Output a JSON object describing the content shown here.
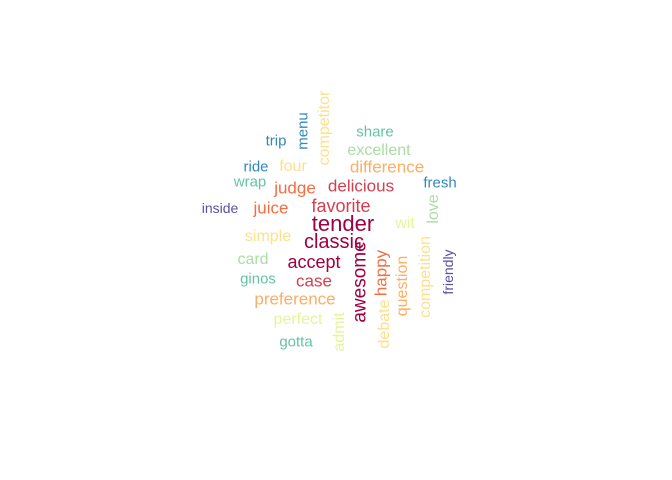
{
  "words": [
    {
      "text": "tender",
      "color": "#9e0142",
      "vertical": false
    },
    {
      "text": "classic",
      "color": "#9e0142",
      "vertical": false
    },
    {
      "text": "favorite",
      "color": "#d53e4f",
      "vertical": false
    },
    {
      "text": "accept",
      "color": "#9e0142",
      "vertical": false
    },
    {
      "text": "awesome",
      "color": "#9e0142",
      "vertical": true
    },
    {
      "text": "delicious",
      "color": "#d53e4f",
      "vertical": false
    },
    {
      "text": "case",
      "color": "#d53e4f",
      "vertical": false
    },
    {
      "text": "judge",
      "color": "#f46d43",
      "vertical": false
    },
    {
      "text": "juice",
      "color": "#f46d43",
      "vertical": false
    },
    {
      "text": "happy",
      "color": "#f46d43",
      "vertical": true
    },
    {
      "text": "difference",
      "color": "#fdae61",
      "vertical": false
    },
    {
      "text": "preference",
      "color": "#fdae61",
      "vertical": false
    },
    {
      "text": "question",
      "color": "#fdae61",
      "vertical": true
    },
    {
      "text": "simple",
      "color": "#fee08b",
      "vertical": false
    },
    {
      "text": "competitor",
      "color": "#fee08b",
      "vertical": true
    },
    {
      "text": "four",
      "color": "#fee08b",
      "vertical": false
    },
    {
      "text": "competition",
      "color": "#fee08b",
      "vertical": true
    },
    {
      "text": "debate",
      "color": "#fee08b",
      "vertical": true
    },
    {
      "text": "wit",
      "color": "#e6f598",
      "vertical": false
    },
    {
      "text": "perfect",
      "color": "#e6f598",
      "vertical": false
    },
    {
      "text": "admit",
      "color": "#e6f598",
      "vertical": true
    },
    {
      "text": "love",
      "color": "#abdda4",
      "vertical": true
    },
    {
      "text": "card",
      "color": "#abdda4",
      "vertical": false
    },
    {
      "text": "excellent",
      "color": "#abdda4",
      "vertical": false
    },
    {
      "text": "ginos",
      "color": "#66c2a5",
      "vertical": false
    },
    {
      "text": "gotta",
      "color": "#66c2a5",
      "vertical": false
    },
    {
      "text": "wrap",
      "color": "#66c2a5",
      "vertical": false
    },
    {
      "text": "share",
      "color": "#66c2a5",
      "vertical": false
    },
    {
      "text": "menu",
      "color": "#3288bd",
      "vertical": true
    },
    {
      "text": "fresh",
      "color": "#3288bd",
      "vertical": false
    },
    {
      "text": "ride",
      "color": "#3288bd",
      "vertical": false
    },
    {
      "text": "trip",
      "color": "#3288bd",
      "vertical": false
    },
    {
      "text": "friendly",
      "color": "#5e4fa2",
      "vertical": true
    },
    {
      "text": "inside",
      "color": "#5e4fa2",
      "vertical": false
    }
  ]
}
